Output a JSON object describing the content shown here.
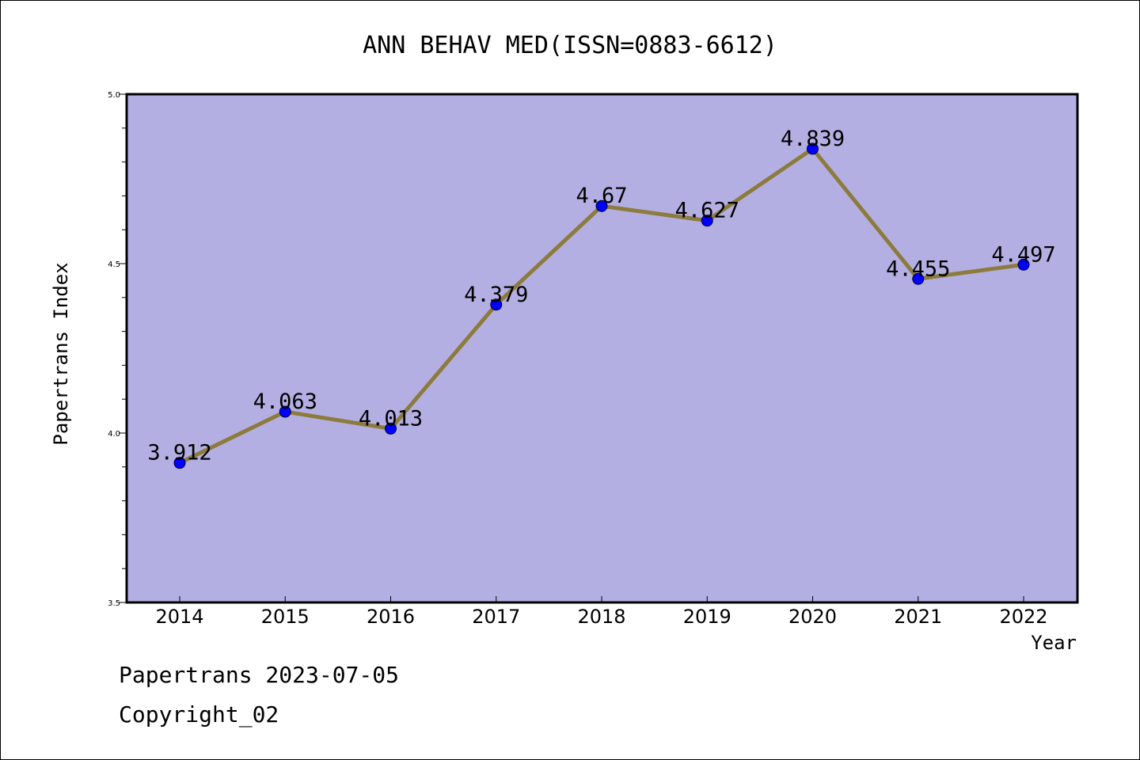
{
  "chart_data": {
    "type": "line",
    "title": "ANN BEHAV MED(ISSN=0883-6612)",
    "xlabel": "Year",
    "ylabel": "Papertrans Index",
    "categories": [
      "2014",
      "2015",
      "2016",
      "2017",
      "2018",
      "2019",
      "2020",
      "2021",
      "2022"
    ],
    "values": [
      3.912,
      4.063,
      4.013,
      4.379,
      4.67,
      4.627,
      4.839,
      4.455,
      4.497
    ],
    "value_labels": [
      "3.912",
      "4.063",
      "4.013",
      "4.379",
      "4.67",
      "4.627",
      "4.839",
      "4.455",
      "4.497"
    ],
    "ylim": [
      3.5,
      5.0
    ],
    "yticks": [
      "3.5",
      "4.0",
      "4.5",
      "5.0"
    ],
    "grid": false,
    "legend": "none",
    "colors": {
      "plot_bg": "#b4afe3",
      "line": "#8c7b3c",
      "marker": "#0000ff"
    }
  },
  "footer": {
    "line1": "Papertrans 2023-07-05",
    "line2": "Copyright_02"
  }
}
